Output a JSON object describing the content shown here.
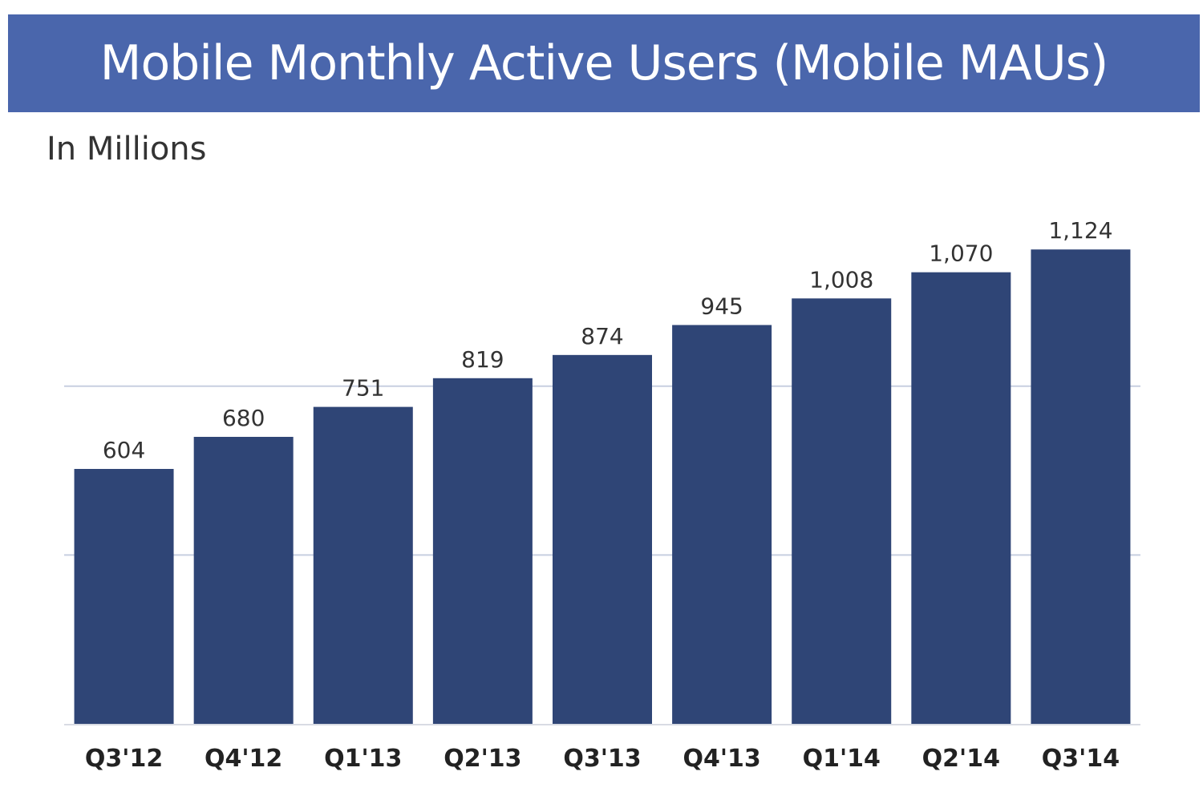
{
  "chart_data": {
    "type": "bar",
    "title": "Mobile Monthly Active Users (Mobile MAUs)",
    "subtitle": "In Millions",
    "categories": [
      "Q3'12",
      "Q4'12",
      "Q1'13",
      "Q2'13",
      "Q3'13",
      "Q4'13",
      "Q1'14",
      "Q2'14",
      "Q3'14"
    ],
    "values": [
      604,
      680,
      751,
      819,
      874,
      945,
      1008,
      1070,
      1124
    ],
    "value_labels": [
      "604",
      "680",
      "751",
      "819",
      "874",
      "945",
      "1,008",
      "1,070",
      "1,124"
    ],
    "xlabel": "",
    "ylabel": "",
    "ylim": [
      0,
      1250
    ],
    "grid": true,
    "legend": "none"
  },
  "colors": {
    "title_banner": "#4a66ac",
    "bar": "#2f4576",
    "gridline": "#c8cfe0",
    "baseline": "#d8dbe3"
  }
}
